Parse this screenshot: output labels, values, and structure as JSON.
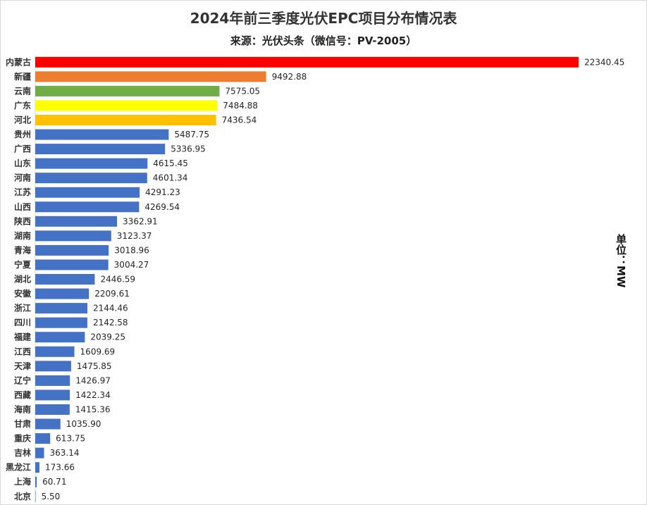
{
  "chart_data": {
    "type": "bar",
    "orientation": "horizontal",
    "title": "2024年前三季度光伏EPC项目分布情况表",
    "subtitle": "来源：光伏头条（微信号：PV-2005）",
    "unit_label": "单位：MW",
    "categories": [
      "内蒙古",
      "新疆",
      "云南",
      "广东",
      "河北",
      "贵州",
      "广西",
      "山东",
      "河南",
      "江苏",
      "山西",
      "陕西",
      "湖南",
      "青海",
      "宁夏",
      "湖北",
      "安徽",
      "浙江",
      "四川",
      "福建",
      "江西",
      "天津",
      "辽宁",
      "西藏",
      "海南",
      "甘肃",
      "重庆",
      "吉林",
      "黑龙江",
      "上海",
      "北京"
    ],
    "values": [
      22340.45,
      9492.88,
      7575.05,
      7484.88,
      7436.54,
      5487.75,
      5336.95,
      4615.45,
      4601.34,
      4291.23,
      4269.54,
      3362.91,
      3123.37,
      3018.96,
      3004.27,
      2446.59,
      2209.61,
      2144.46,
      2142.58,
      2039.25,
      1609.69,
      1475.85,
      1426.97,
      1422.34,
      1415.36,
      1035.9,
      613.75,
      363.14,
      173.66,
      60.71,
      5.5
    ],
    "value_labels": [
      "22340.45",
      "9492.88",
      "7575.05",
      "7484.88",
      "7436.54",
      "5487.75",
      "5336.95",
      "4615.45",
      "4601.34",
      "4291.23",
      "4269.54",
      "3362.91",
      "3123.37",
      "3018.96",
      "3004.27",
      "2446.59",
      "2209.61",
      "2144.46",
      "2142.58",
      "2039.25",
      "1609.69",
      "1475.85",
      "1426.97",
      "1422.34",
      "1415.36",
      "1035.90",
      "613.75",
      "363.14",
      "173.66",
      "60.71",
      "5.50"
    ],
    "bar_colors": [
      "#ff0000",
      "#ed7d31",
      "#70ad47",
      "#ffff00",
      "#ffc000",
      "#4472c4",
      "#4472c4",
      "#4472c4",
      "#4472c4",
      "#4472c4",
      "#4472c4",
      "#4472c4",
      "#4472c4",
      "#4472c4",
      "#4472c4",
      "#4472c4",
      "#4472c4",
      "#4472c4",
      "#4472c4",
      "#4472c4",
      "#4472c4",
      "#4472c4",
      "#4472c4",
      "#4472c4",
      "#4472c4",
      "#4472c4",
      "#4472c4",
      "#4472c4",
      "#4472c4",
      "#4472c4",
      "#4472c4"
    ],
    "xlim": [
      0,
      22340.45
    ],
    "grid": false,
    "legend": "none"
  }
}
